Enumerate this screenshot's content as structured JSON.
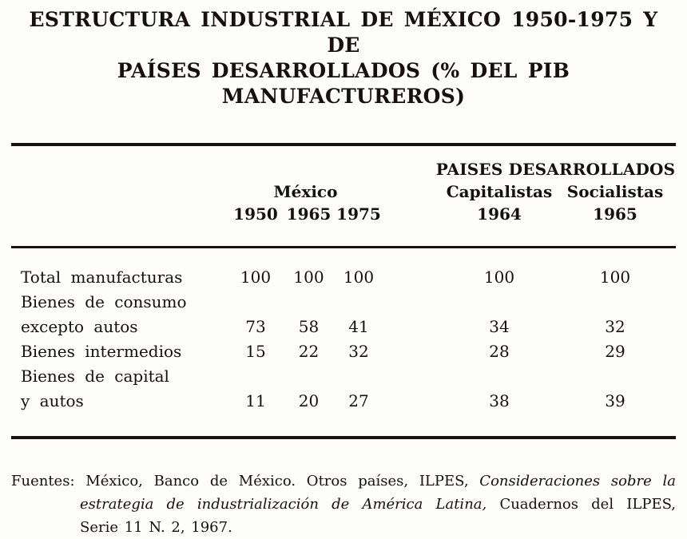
{
  "title": {
    "lines": [
      "ESTRUCTURA INDUSTRIAL DE MÉXICO 1950-1975 Y DE",
      "PAÍSES DESARROLLADOS (% DEL PIB",
      "MANUFACTUREROS)"
    ]
  },
  "table": {
    "group_header": "PAISES DESARROLLADOS",
    "mexico": {
      "label": "México",
      "years": [
        "1950",
        "1965",
        "1975"
      ]
    },
    "capitalistas": {
      "label": "Capitalistas",
      "year": "1964"
    },
    "socialistas": {
      "label": "Socialistas",
      "year": "1965"
    },
    "rows": [
      {
        "label_lines": [
          "Total manufacturas"
        ],
        "values": [
          "100",
          "100",
          "100",
          "100",
          "100"
        ]
      },
      {
        "label_lines": [
          "Bienes de consumo",
          "excepto autos"
        ],
        "values": [
          "73",
          "58",
          "41",
          "34",
          "32"
        ]
      },
      {
        "label_lines": [
          "Bienes intermedios"
        ],
        "values": [
          "15",
          "22",
          "32",
          "28",
          "29"
        ]
      },
      {
        "label_lines": [
          "Bienes de capital",
          "y autos"
        ],
        "values": [
          "11",
          "20",
          "27",
          "38",
          "39"
        ]
      }
    ]
  },
  "sources": {
    "label": "Fuentes:",
    "line1_regular": "México, Banco de México. Otros países, ILPES,",
    "line1_italic": "Consideraciones sobre la",
    "line2_italic": "estrategia de industrialización de América Latina,",
    "line2_regular": "Cuadernos del ILPES,",
    "line3": "Serie 11 N. 2, 1967."
  },
  "chart_data": {
    "type": "table",
    "title": "ESTRUCTURA INDUSTRIAL DE MÉXICO 1950-1975 Y DE PAÍSES DESARROLLADOS (% DEL PIB MANUFACTUREROS)",
    "columns": [
      "México 1950",
      "México 1965",
      "México 1975",
      "Países desarrollados capitalistas 1964",
      "Países desarrollados socialistas 1965"
    ],
    "rows": [
      {
        "category": "Total manufacturas",
        "values": [
          100,
          100,
          100,
          100,
          100
        ]
      },
      {
        "category": "Bienes de consumo excepto autos",
        "values": [
          73,
          58,
          41,
          34,
          32
        ]
      },
      {
        "category": "Bienes intermedios",
        "values": [
          15,
          22,
          32,
          28,
          29
        ]
      },
      {
        "category": "Bienes de capital y autos",
        "values": [
          11,
          20,
          27,
          38,
          39
        ]
      }
    ],
    "units": "% del PIB manufacturero",
    "source_note": "Fuentes: México, Banco de México. Otros países, ILPES, Consideraciones sobre la estrategia de industrialización de América Latina, Cuadernos del ILPES, Serie 11 N. 2, 1967."
  },
  "colors": {
    "background": "#fdfdfc",
    "ink": "#14110e"
  }
}
